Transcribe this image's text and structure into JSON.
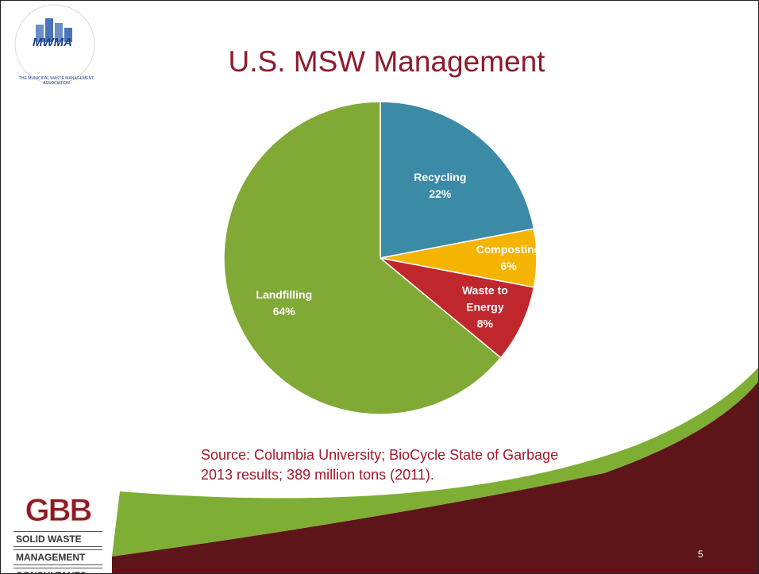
{
  "chart_data": {
    "type": "pie",
    "title": "U.S. MSW Management",
    "categories": [
      "Recycling",
      "Composting",
      "Waste to Energy",
      "Landfilling"
    ],
    "values": [
      22,
      6,
      8,
      64
    ],
    "value_labels": [
      "22%",
      "6%",
      "8%",
      "64%"
    ],
    "colors": [
      "#3b8aa6",
      "#f4b400",
      "#c0272d",
      "#80a935"
    ],
    "source": "Source: Columbia University; BioCycle State of Garbage 2013 results; 389 million tons (2011)."
  },
  "slide": {
    "page_number": "5",
    "mwma_logo": {
      "abbr": "MWMA",
      "ring": "THE MUNICIPAL WASTE MANAGEMENT ASSOCIATION"
    },
    "gbb_logo": {
      "abbr": "GBB",
      "lines": [
        "SOLID WASTE",
        "MANAGEMENT",
        "CONSULTANTS"
      ]
    }
  }
}
